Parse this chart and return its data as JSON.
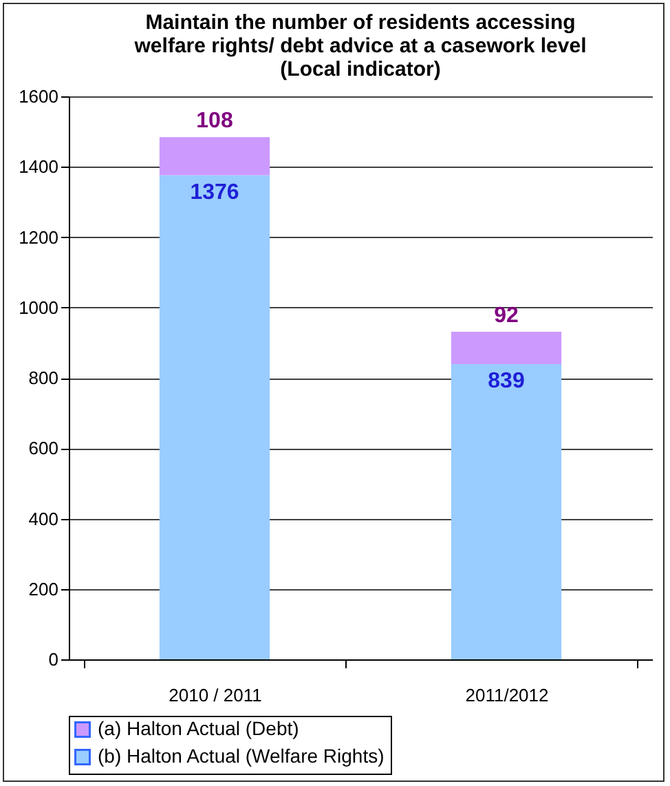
{
  "chart_data": {
    "type": "bar",
    "title": "Maintain the number of residents accessing\nwelfare rights/ debt advice at a casework level\n(Local indicator)",
    "categories": [
      "2010 / 2011",
      "2011/2012"
    ],
    "stacked": true,
    "series": [
      {
        "name": "(b) Halton Actual (Welfare Rights)",
        "color": "#99ccff",
        "values": [
          1376,
          839
        ]
      },
      {
        "name": "(a) Halton Actual (Debt)",
        "color": "#cc99ff",
        "values": [
          108,
          92
        ]
      }
    ],
    "ylim": [
      0,
      1600
    ],
    "yticks": [
      0,
      200,
      400,
      600,
      800,
      1000,
      1200,
      1400,
      1600
    ],
    "grid": "y",
    "legend": "bottom",
    "data_labels": true
  }
}
